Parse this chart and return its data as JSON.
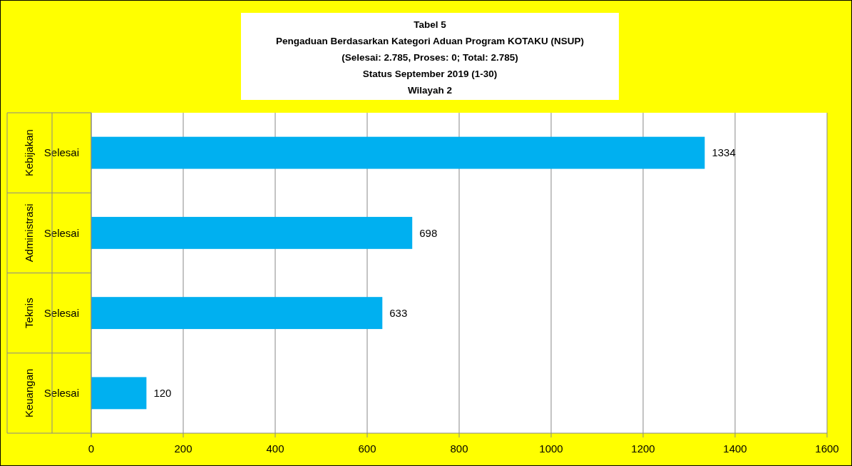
{
  "chart_data": {
    "type": "bar",
    "orientation": "horizontal",
    "title": "Tabel 5",
    "subtitle": "Pengaduan Berdasarkan Kategori Aduan Program KOTAKU (NSUP)\n(Selesai: 2.785, Proses: 0; Total: 2.785)\nStatus September 2019 (1-30)\nWilayah 2",
    "categories": [
      "Kebijakan",
      "Administrasi",
      "Teknis",
      "Keuangan"
    ],
    "series": [
      {
        "name": "Selesai",
        "color": "#00b0f0",
        "values": [
          1334,
          698,
          633,
          120
        ]
      }
    ],
    "xlim": [
      0,
      1600
    ],
    "xticks": [
      0,
      200,
      400,
      600,
      800,
      1000,
      1200,
      1400,
      1600
    ],
    "grid": "x",
    "data_labels": true
  }
}
